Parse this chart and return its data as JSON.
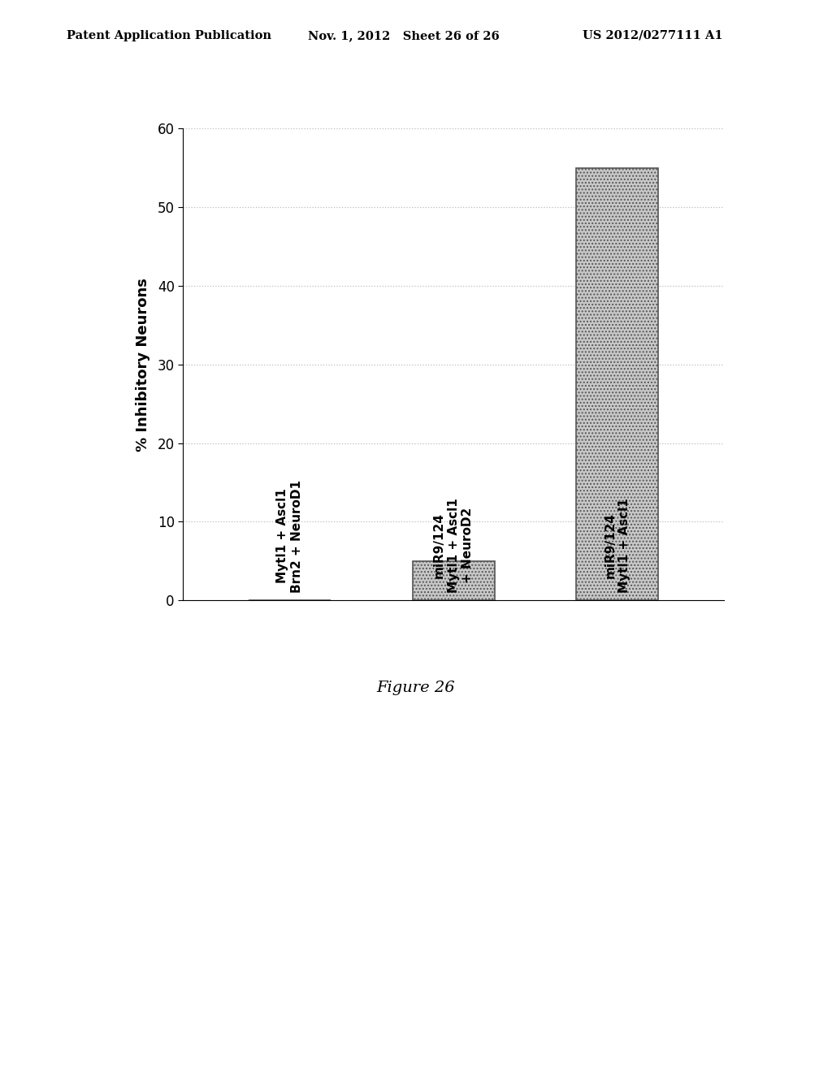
{
  "header_left": "Patent Application Publication",
  "header_mid": "Nov. 1, 2012   Sheet 26 of 26",
  "header_right": "US 2012/0277111 A1",
  "bar_labels": [
    "Mytl1 + Ascl1\nBrn2 + NeuroD1",
    "miR9/124\nMytl1 + Ascl1\n+ NeuroD2",
    "miR9/124\nMytl1 + Ascl1"
  ],
  "bar_values": [
    0.0,
    5.0,
    55.0
  ],
  "bar_color": "#c8c8c8",
  "bar_edgecolor": "#555555",
  "ylabel": "% Inhibitory Neurons",
  "ylim": [
    0,
    60
  ],
  "yticks": [
    0,
    10,
    20,
    30,
    40,
    50,
    60
  ],
  "figure_caption": "Figure 26",
  "bg_color": "#ffffff",
  "grid_color": "#bbbbbb",
  "header_fontsize": 10.5,
  "ylabel_fontsize": 13,
  "tick_fontsize": 12,
  "caption_fontsize": 14,
  "bar_label_fontsize": 11
}
